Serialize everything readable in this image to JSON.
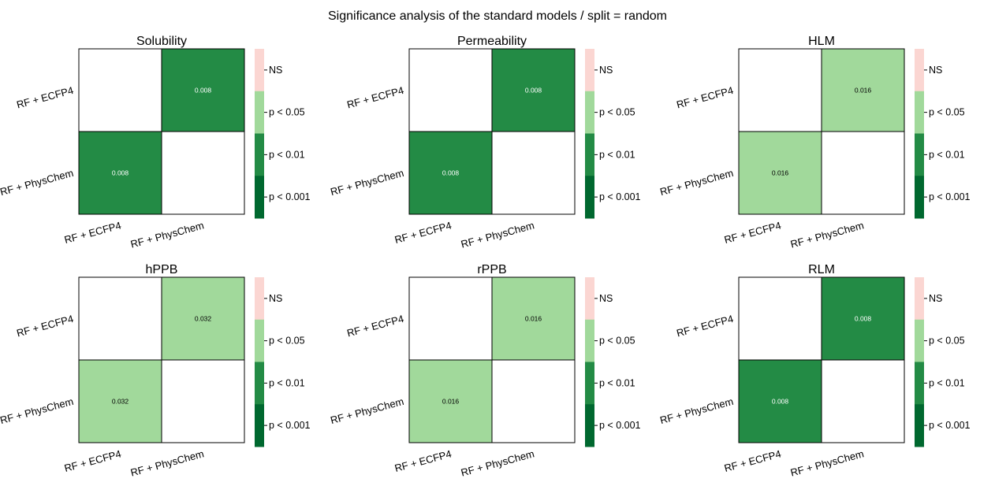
{
  "title": "Significance analysis of the standard models / split = random",
  "colors": {
    "ns": "#fbd6d2",
    "p05": "#a1d99b",
    "p01": "#238b45",
    "p001": "#00682f",
    "empty": "#ffffff",
    "grid": "#000000"
  },
  "chart_data": [
    {
      "type": "heatmap",
      "title": "Solubility",
      "rows": [
        "RF + ECFP4",
        "RF + PhysChem"
      ],
      "cols": [
        "RF + ECFP4",
        "RF + PhysChem"
      ],
      "values": [
        [
          null,
          0.008
        ],
        [
          0.008,
          null
        ]
      ],
      "annotations": [
        [
          "",
          "0.008"
        ],
        [
          "0.008",
          ""
        ]
      ],
      "colorbar": [
        "NS",
        "p < 0.05",
        "p < 0.01",
        "p < 0.001"
      ]
    },
    {
      "type": "heatmap",
      "title": "Permeability",
      "rows": [
        "RF + ECFP4",
        "RF + PhysChem"
      ],
      "cols": [
        "RF + ECFP4",
        "RF + PhysChem"
      ],
      "values": [
        [
          null,
          0.008
        ],
        [
          0.008,
          null
        ]
      ],
      "annotations": [
        [
          "",
          "0.008"
        ],
        [
          "0.008",
          ""
        ]
      ],
      "colorbar": [
        "NS",
        "p < 0.05",
        "p < 0.01",
        "p < 0.001"
      ]
    },
    {
      "type": "heatmap",
      "title": "HLM",
      "rows": [
        "RF + ECFP4",
        "RF + PhysChem"
      ],
      "cols": [
        "RF + ECFP4",
        "RF + PhysChem"
      ],
      "values": [
        [
          null,
          0.016
        ],
        [
          0.016,
          null
        ]
      ],
      "annotations": [
        [
          "",
          "0.016"
        ],
        [
          "0.016",
          ""
        ]
      ],
      "colorbar": [
        "NS",
        "p < 0.05",
        "p < 0.01",
        "p < 0.001"
      ]
    },
    {
      "type": "heatmap",
      "title": "hPPB",
      "rows": [
        "RF + ECFP4",
        "RF + PhysChem"
      ],
      "cols": [
        "RF + ECFP4",
        "RF + PhysChem"
      ],
      "values": [
        [
          null,
          0.032
        ],
        [
          0.032,
          null
        ]
      ],
      "annotations": [
        [
          "",
          "0.032"
        ],
        [
          "0.032",
          ""
        ]
      ],
      "colorbar": [
        "NS",
        "p < 0.05",
        "p < 0.01",
        "p < 0.001"
      ]
    },
    {
      "type": "heatmap",
      "title": "rPPB",
      "rows": [
        "RF + ECFP4",
        "RF + PhysChem"
      ],
      "cols": [
        "RF + ECFP4",
        "RF + PhysChem"
      ],
      "values": [
        [
          null,
          0.016
        ],
        [
          0.016,
          null
        ]
      ],
      "annotations": [
        [
          "",
          "0.016"
        ],
        [
          "0.016",
          ""
        ]
      ],
      "colorbar": [
        "NS",
        "p < 0.05",
        "p < 0.01",
        "p < 0.001"
      ]
    },
    {
      "type": "heatmap",
      "title": "RLM",
      "rows": [
        "RF + ECFP4",
        "RF + PhysChem"
      ],
      "cols": [
        "RF + ECFP4",
        "RF + PhysChem"
      ],
      "values": [
        [
          null,
          0.008
        ],
        [
          0.008,
          null
        ]
      ],
      "annotations": [
        [
          "",
          "0.008"
        ],
        [
          "0.008",
          ""
        ]
      ],
      "colorbar": [
        "NS",
        "p < 0.05",
        "p < 0.01",
        "p < 0.001"
      ]
    }
  ]
}
